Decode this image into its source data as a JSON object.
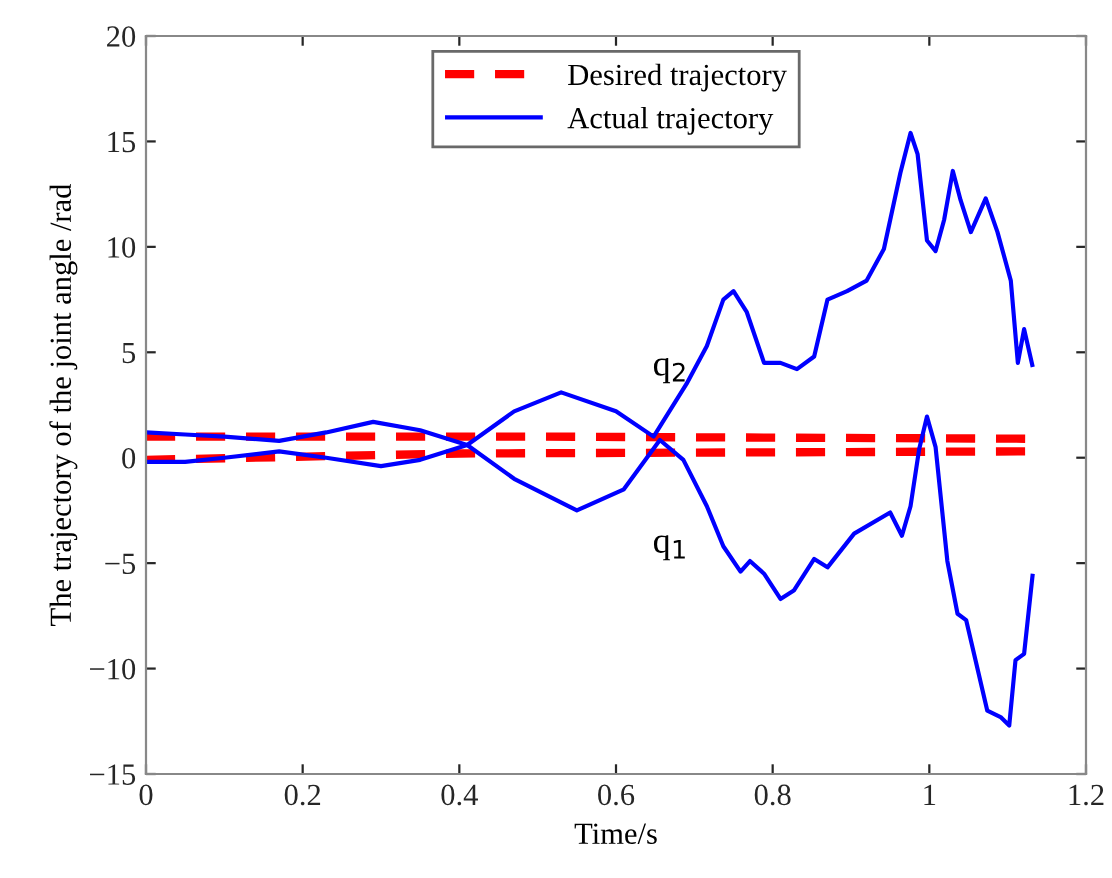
{
  "chart_data": {
    "type": "line",
    "xlabel": "Time/s",
    "ylabel": "The trajectory of the joint angle /rad",
    "xlim": [
      0,
      1.2
    ],
    "xticks": [
      0,
      0.2,
      0.4,
      0.6,
      0.8,
      1,
      1.2
    ],
    "ylim": [
      -15,
      20
    ],
    "yticks": [
      {
        "value": -15,
        "label": "−15"
      },
      {
        "value": -10,
        "label": "−10"
      },
      {
        "value": -5,
        "label": "−5"
      },
      0,
      5,
      10,
      15,
      20
    ],
    "grid": false,
    "legend": "top",
    "series": [
      {
        "name": "Desired trajectory",
        "color": "#ff0000",
        "line_style": "dashed",
        "x": [
          0,
          0.5,
          1.13
        ],
        "values": [
          1.0,
          1.0,
          0.9
        ]
      },
      {
        "color": "#ff0000",
        "line_style": "dashed",
        "x": [
          0,
          0.4,
          1.13
        ],
        "values": [
          -0.1,
          0.2,
          0.3
        ]
      },
      {
        "name": "Actual trajectory",
        "color": "#0000ff",
        "line_style": "solid",
        "x": [
          0,
          0.05,
          0.1,
          0.17,
          0.23,
          0.29,
          0.35,
          0.41,
          0.47,
          0.55,
          0.61,
          0.656,
          0.686,
          0.716,
          0.737,
          0.759,
          0.771,
          0.789,
          0.81,
          0.827,
          0.853,
          0.87,
          0.904,
          0.95,
          0.965,
          0.976,
          0.987,
          0.997,
          1.008,
          1.023,
          1.036,
          1.047,
          1.074,
          1.091,
          1.102,
          1.11,
          1.121,
          1.132
        ],
        "values": [
          1.2,
          1.1,
          1.0,
          0.8,
          1.2,
          1.7,
          1.3,
          0.6,
          -1.0,
          -2.5,
          -1.5,
          0.84,
          -0.1,
          -2.3,
          -4.2,
          -5.4,
          -4.9,
          -5.5,
          -6.7,
          -6.3,
          -4.8,
          -5.2,
          -3.6,
          -2.6,
          -3.7,
          -2.3,
          0.4,
          1.95,
          0.5,
          -4.9,
          -7.4,
          -7.7,
          -12.0,
          -12.3,
          -12.7,
          -9.6,
          -9.3,
          -5.5
        ]
      },
      {
        "color": "#0000ff",
        "line_style": "solid",
        "x": [
          0,
          0.05,
          0.1,
          0.17,
          0.23,
          0.3,
          0.35,
          0.41,
          0.47,
          0.53,
          0.6,
          0.648,
          0.69,
          0.716,
          0.737,
          0.75,
          0.767,
          0.789,
          0.81,
          0.831,
          0.853,
          0.87,
          0.895,
          0.92,
          0.942,
          0.963,
          0.976,
          0.985,
          0.997,
          1.008,
          1.019,
          1.03,
          1.04,
          1.053,
          1.072,
          1.087,
          1.104,
          1.113,
          1.121,
          1.132
        ],
        "values": [
          -0.2,
          -0.2,
          0.0,
          0.3,
          0.0,
          -0.4,
          -0.1,
          0.6,
          2.2,
          3.1,
          2.2,
          1.0,
          3.5,
          5.3,
          7.5,
          7.9,
          6.9,
          4.5,
          4.5,
          4.2,
          4.8,
          7.5,
          7.9,
          8.4,
          9.9,
          13.5,
          15.4,
          14.4,
          10.3,
          9.8,
          11.3,
          13.6,
          12.2,
          10.7,
          12.3,
          10.7,
          8.4,
          4.5,
          6.1,
          4.3
        ]
      }
    ],
    "annotations": [
      "q$_{2}$",
      "q$_{1}$"
    ]
  }
}
